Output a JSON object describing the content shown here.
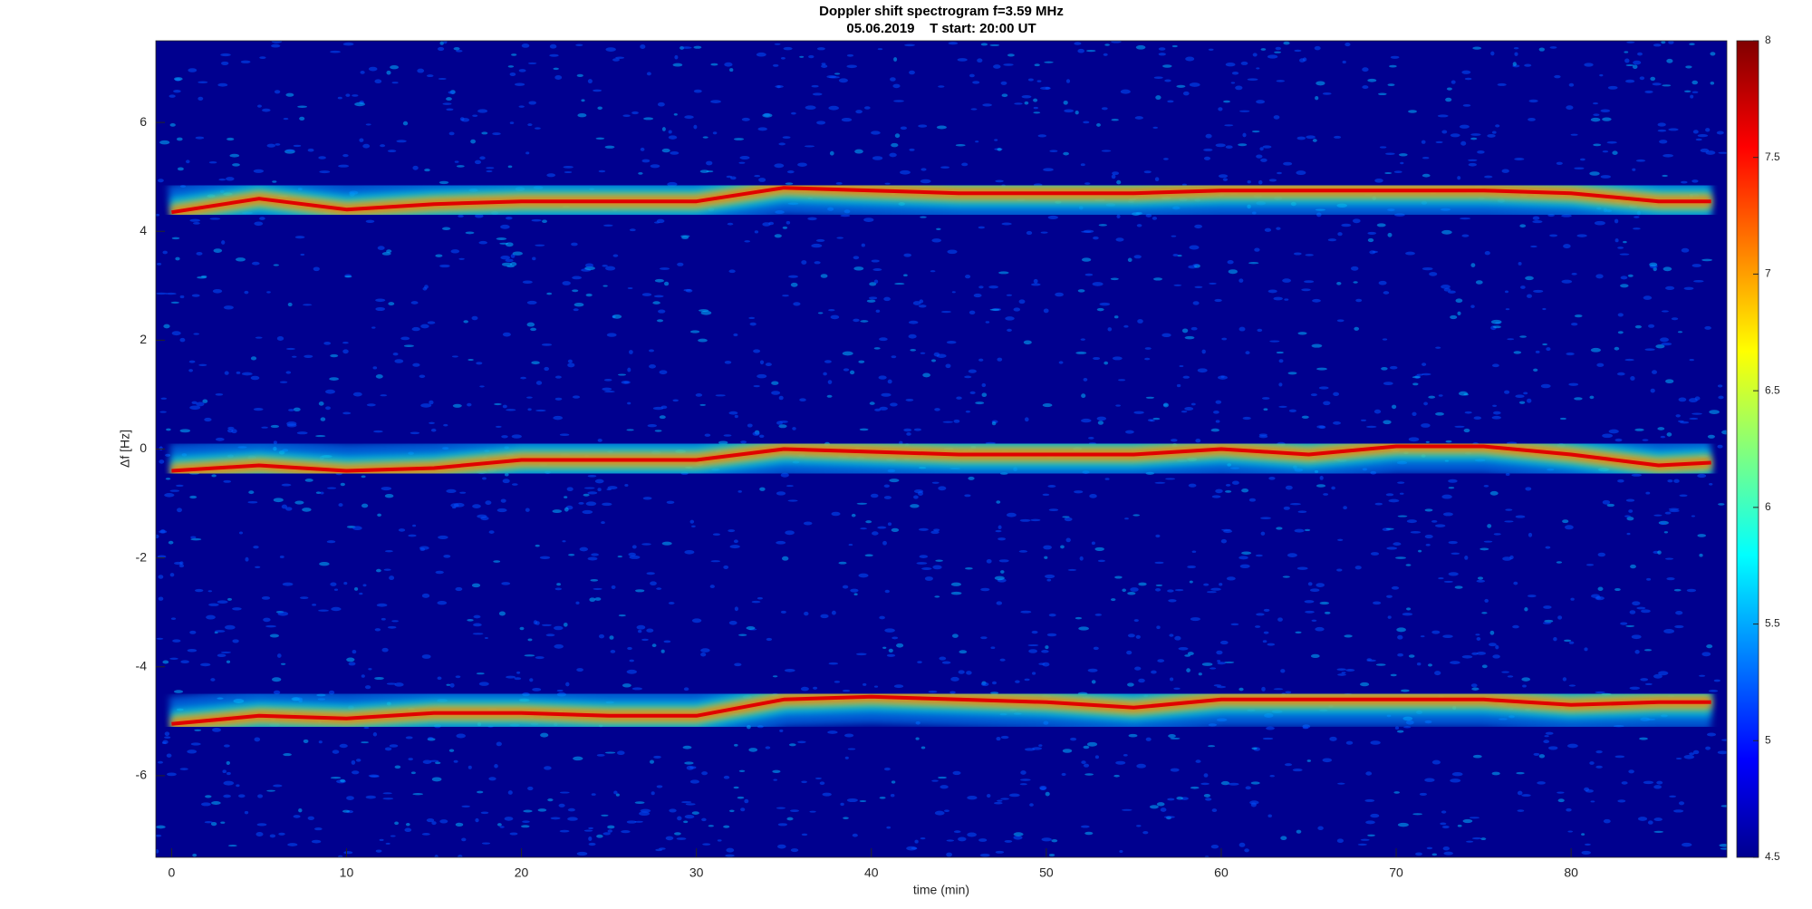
{
  "chart_data": {
    "type": "spectrogram",
    "title": "Doppler shift spectrogram f=3.59 MHz",
    "subtitle": "05.06.2019    T start: 20:00 UT",
    "xlabel": "time (min)",
    "ylabel": "Δf [Hz]",
    "x": [
      0,
      5,
      10,
      15,
      20,
      25,
      30,
      35,
      40,
      45,
      50,
      55,
      60,
      65,
      70,
      75,
      80,
      85,
      88
    ],
    "series": [
      {
        "color": "#e00000",
        "values": [
          4.35,
          4.6,
          4.4,
          4.5,
          4.55,
          4.55,
          4.55,
          4.8,
          4.75,
          4.7,
          4.7,
          4.7,
          4.75,
          4.75,
          4.75,
          4.75,
          4.7,
          4.55,
          4.55
        ]
      },
      {
        "color": "#e00000",
        "values": [
          -0.4,
          -0.3,
          -0.4,
          -0.35,
          -0.2,
          -0.2,
          -0.2,
          0,
          -0.05,
          -0.1,
          -0.1,
          -0.1,
          0,
          -0.1,
          0.05,
          0.05,
          -0.1,
          -0.3,
          -0.25
        ]
      },
      {
        "color": "#e00000",
        "values": [
          -5.05,
          -4.9,
          -4.95,
          -4.85,
          -4.85,
          -4.9,
          -4.9,
          -4.6,
          -4.55,
          -4.6,
          -4.65,
          -4.75,
          -4.6,
          -4.6,
          -4.6,
          -4.6,
          -4.7,
          -4.65,
          -4.65
        ]
      }
    ],
    "xlim": [
      -0.9,
      88.9
    ],
    "xticks": [
      0,
      10,
      20,
      30,
      40,
      50,
      60,
      70,
      80
    ],
    "ylim": [
      -7.5,
      7.5
    ],
    "yticks": [
      -6,
      -4,
      -2,
      0,
      2,
      4,
      6
    ],
    "background_color": "#00008f",
    "colorbar": {
      "lim": [
        4.5,
        8
      ],
      "ticks": [
        4.5,
        5,
        5.5,
        6,
        6.5,
        7,
        7.5,
        8
      ]
    }
  }
}
